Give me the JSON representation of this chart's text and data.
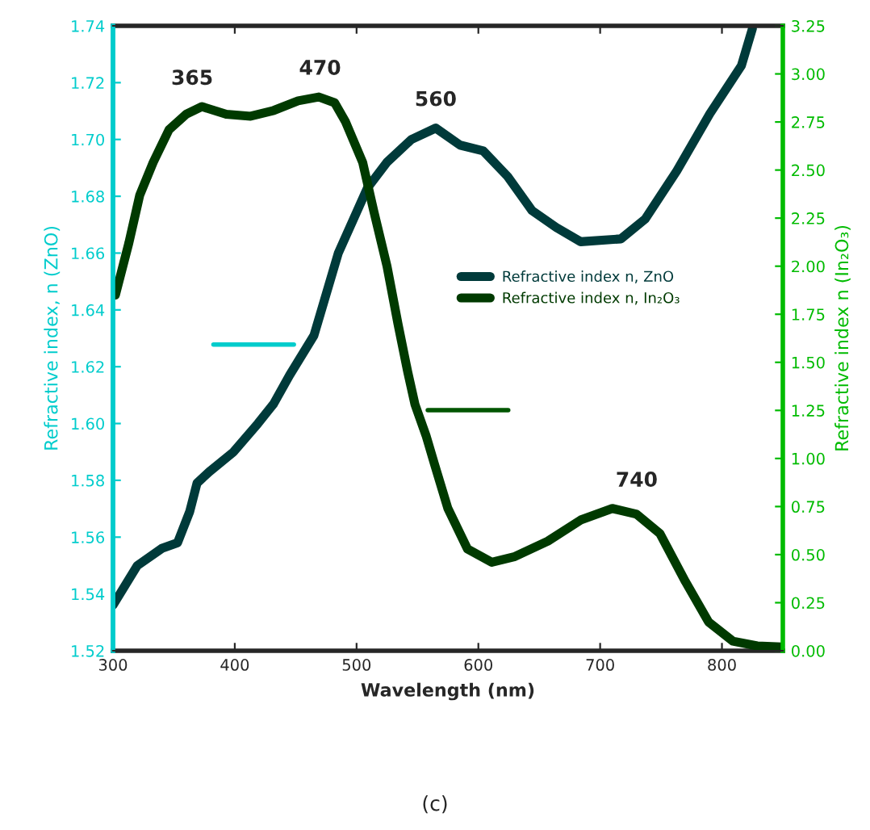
{
  "chart_data": {
    "type": "line",
    "xlabel": "Wavelength (nm)",
    "ylabel": "Refractive index, n (ZnO)",
    "y2label": "Refractive index n (In₂O₃)",
    "series": [
      {
        "name": "Refractive index n, ZnO",
        "color": "#003a3a",
        "x": [
          300,
          320,
          340,
          353,
          363,
          369,
          379,
          399,
          419,
          432,
          445,
          465,
          485,
          509,
          525,
          545,
          565,
          585,
          604,
          624,
          644,
          664,
          684,
          717,
          737,
          763,
          790,
          816,
          825
        ],
        "values": [
          1.536,
          1.55,
          1.556,
          1.558,
          1.569,
          1.579,
          1.583,
          1.59,
          1.6,
          1.607,
          1.617,
          1.631,
          1.66,
          1.683,
          1.692,
          1.7,
          1.704,
          1.698,
          1.696,
          1.687,
          1.675,
          1.669,
          1.664,
          1.665,
          1.672,
          1.689,
          1.709,
          1.726,
          1.739
        ]
      },
      {
        "name": "Refractive index n, In₂O₃",
        "color": "#003a00",
        "axis": "y2",
        "x": [
          302,
          313,
          322,
          333,
          346,
          360,
          373,
          393,
          413,
          432,
          452,
          469,
          482,
          491,
          505,
          514,
          525,
          534,
          542,
          548,
          557,
          564,
          575,
          591,
          611,
          630,
          657,
          684,
          710,
          730,
          749,
          770,
          789,
          809,
          829,
          849
        ],
        "values": [
          1.85,
          2.12,
          2.37,
          2.54,
          2.71,
          2.79,
          2.83,
          2.79,
          2.78,
          2.81,
          2.86,
          2.88,
          2.85,
          2.75,
          2.54,
          2.29,
          2.0,
          1.7,
          1.45,
          1.28,
          1.12,
          0.97,
          0.74,
          0.53,
          0.46,
          0.49,
          0.57,
          0.68,
          0.74,
          0.71,
          0.61,
          0.36,
          0.15,
          0.05,
          0.025,
          0.02
        ]
      }
    ],
    "xlim": [
      300,
      850
    ],
    "xticks": [
      300,
      400,
      500,
      600,
      700,
      800
    ],
    "ylim": [
      1.52,
      1.74
    ],
    "yticks": [
      {
        "value": 1.52,
        "label": "1.52"
      },
      {
        "value": 1.54,
        "label": "1.54"
      },
      {
        "value": 1.56,
        "label": "1.56"
      },
      {
        "value": 1.58,
        "label": "1.58"
      },
      {
        "value": 1.6,
        "label": "1.60"
      },
      {
        "value": 1.62,
        "label": "1.62"
      },
      {
        "value": 1.64,
        "label": "1.64"
      },
      {
        "value": 1.66,
        "label": "1.66"
      },
      {
        "value": 1.68,
        "label": "1.68"
      },
      {
        "value": 1.7,
        "label": "1.70"
      },
      {
        "value": 1.72,
        "label": "1.72"
      },
      {
        "value": 1.74,
        "label": "1.74"
      }
    ],
    "y2lim": [
      0,
      3.25
    ],
    "y2ticks": [
      {
        "value": 0,
        "label": "0.00"
      },
      {
        "value": 0.25,
        "label": "0.25"
      },
      {
        "value": 0.5,
        "label": "0.50"
      },
      {
        "value": 0.75,
        "label": "0.75"
      },
      {
        "value": 1.0,
        "label": "1.00"
      },
      {
        "value": 1.25,
        "label": "1.25"
      },
      {
        "value": 1.5,
        "label": "1.50"
      },
      {
        "value": 1.75,
        "label": "1.75"
      },
      {
        "value": 2.0,
        "label": "2.00"
      },
      {
        "value": 2.25,
        "label": "2.25"
      },
      {
        "value": 2.5,
        "label": "2.50"
      },
      {
        "value": 2.75,
        "label": "2.75"
      },
      {
        "value": 3.0,
        "label": "3.00"
      },
      {
        "value": 3.25,
        "label": "3.25"
      }
    ],
    "annotations": [
      {
        "text": "365",
        "x": 365,
        "y": 1.7115
      },
      {
        "text": "470",
        "x": 470,
        "y": 1.715
      },
      {
        "text": "560",
        "x": 565,
        "y": 1.704
      },
      {
        "text": "740",
        "x": 730,
        "y": 1.57
      },
      "(c)"
    ],
    "legend": "right",
    "grid": false,
    "marker": "none",
    "line_style": "solid"
  }
}
